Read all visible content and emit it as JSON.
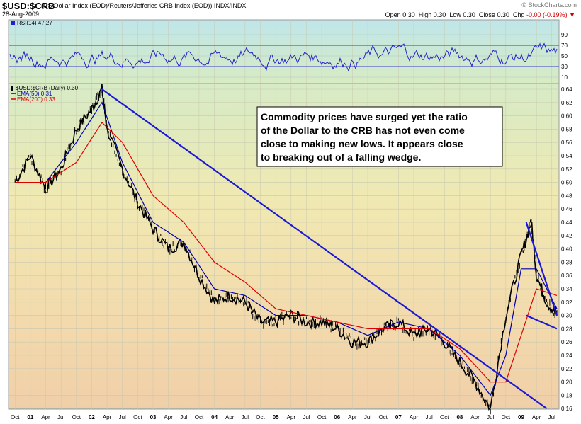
{
  "header": {
    "symbol": "$USD:$CRB",
    "subtitle": "(US Dollar Index (EOD)/Reuters/Jefferies CRB Index (EOD)) INDX/INDX",
    "date": "28-Aug-2009",
    "open_label": "Open",
    "open": "0.30",
    "high_label": "High",
    "high": "0.30",
    "low_label": "Low",
    "low": "0.30",
    "close_label": "Close",
    "close": "0.30",
    "chg_label": "Chg",
    "chg": "-0.00 (-0.19%)",
    "brand": "© StockCharts.com"
  },
  "rsi_panel": {
    "legend": "RSI(14) 47.27",
    "ticks": [
      90,
      70,
      50,
      30,
      10
    ],
    "levels": [
      70,
      30
    ]
  },
  "price_panel": {
    "legend_main": "$USD:$CRB (Daily) 0.30",
    "legend_ema50": "EMA(50) 0.31",
    "legend_ema200": "EMA(200) 0.33",
    "annotation": [
      "Commodity prices have surged yet the ratio",
      "of the Dollar to the CRB has not even come",
      "close to making new lows.  It appears close",
      "to breaking out of a falling wedge."
    ],
    "yticks": [
      "0.64",
      "0.62",
      "0.60",
      "0.58",
      "0.56",
      "0.54",
      "0.52",
      "0.50",
      "0.48",
      "0.46",
      "0.44",
      "0.42",
      "0.40",
      "0.38",
      "0.36",
      "0.34",
      "0.32",
      "0.30",
      "0.28",
      "0.26",
      "0.24",
      "0.22",
      "0.20",
      "0.18",
      "0.16"
    ]
  },
  "xaxis": {
    "labels": [
      "Oct",
      "01",
      "Apr",
      "Jul",
      "Oct",
      "02",
      "Apr",
      "Jul",
      "Oct",
      "03",
      "Apr",
      "Jul",
      "Oct",
      "04",
      "Apr",
      "Jul",
      "Oct",
      "05",
      "Apr",
      "Jul",
      "Oct",
      "06",
      "Apr",
      "Jul",
      "Oct",
      "07",
      "Apr",
      "Jul",
      "Oct",
      "08",
      "Apr",
      "Jul",
      "Oct",
      "09",
      "Apr",
      "Jul"
    ],
    "bold": [
      "01",
      "02",
      "03",
      "04",
      "05",
      "06",
      "07",
      "08",
      "09"
    ]
  },
  "colors": {
    "price": "#000000",
    "ema50": "#0000aa",
    "ema200": "#dd0000",
    "trendline": "#1a1ad6",
    "rsi": "#2222cc"
  },
  "chart_data": {
    "type": "line",
    "title": "$USD:$CRB",
    "x_range": [
      "2000-10",
      "2009-08"
    ],
    "ylim": [
      0.15,
      0.65
    ],
    "series": [
      {
        "name": "$USD:$CRB",
        "x": [
          "2000-10",
          "2001-01",
          "2001-04",
          "2001-07",
          "2001-10",
          "2002-01",
          "2002-03",
          "2002-04",
          "2002-07",
          "2002-10",
          "2003-01",
          "2003-04",
          "2003-07",
          "2003-10",
          "2004-01",
          "2004-04",
          "2004-07",
          "2004-10",
          "2005-01",
          "2005-04",
          "2005-07",
          "2005-10",
          "2006-01",
          "2006-04",
          "2006-07",
          "2006-10",
          "2007-01",
          "2007-04",
          "2007-07",
          "2007-10",
          "2008-01",
          "2008-04",
          "2008-07",
          "2008-10",
          "2009-01",
          "2009-03",
          "2009-04",
          "2009-06",
          "2009-08"
        ],
        "values": [
          0.5,
          0.54,
          0.49,
          0.52,
          0.58,
          0.61,
          0.64,
          0.58,
          0.52,
          0.47,
          0.43,
          0.4,
          0.41,
          0.36,
          0.32,
          0.33,
          0.32,
          0.29,
          0.29,
          0.3,
          0.29,
          0.29,
          0.28,
          0.26,
          0.26,
          0.28,
          0.29,
          0.27,
          0.28,
          0.26,
          0.23,
          0.2,
          0.16,
          0.3,
          0.39,
          0.44,
          0.36,
          0.32,
          0.3
        ]
      },
      {
        "name": "EMA(50)",
        "x": [
          "2000-10",
          "2001-04",
          "2001-10",
          "2002-03",
          "2002-07",
          "2003-01",
          "2003-07",
          "2004-01",
          "2004-07",
          "2005-01",
          "2005-07",
          "2006-01",
          "2006-07",
          "2007-01",
          "2007-07",
          "2008-01",
          "2008-07",
          "2008-10",
          "2009-01",
          "2009-04",
          "2009-08"
        ],
        "values": [
          0.5,
          0.5,
          0.56,
          0.62,
          0.53,
          0.44,
          0.41,
          0.34,
          0.33,
          0.3,
          0.3,
          0.29,
          0.27,
          0.29,
          0.28,
          0.24,
          0.18,
          0.24,
          0.37,
          0.37,
          0.31
        ]
      },
      {
        "name": "EMA(200)",
        "x": [
          "2000-10",
          "2001-04",
          "2001-10",
          "2002-03",
          "2002-07",
          "2003-01",
          "2003-07",
          "2004-01",
          "2004-07",
          "2005-01",
          "2005-07",
          "2006-01",
          "2006-07",
          "2007-01",
          "2007-07",
          "2008-01",
          "2008-07",
          "2008-10",
          "2009-01",
          "2009-04",
          "2009-08"
        ],
        "values": [
          0.5,
          0.5,
          0.53,
          0.59,
          0.56,
          0.48,
          0.44,
          0.38,
          0.35,
          0.31,
          0.3,
          0.29,
          0.28,
          0.28,
          0.28,
          0.25,
          0.2,
          0.2,
          0.27,
          0.34,
          0.33
        ]
      }
    ],
    "trendlines": [
      {
        "name": "long-term resistance",
        "points": [
          [
            "2002-03",
            0.64
          ],
          [
            "2009-06",
            0.16
          ]
        ]
      },
      {
        "name": "wedge upper",
        "points": [
          [
            "2009-02",
            0.44
          ],
          [
            "2009-08",
            0.3
          ]
        ]
      },
      {
        "name": "wedge lower",
        "points": [
          [
            "2009-02",
            0.3
          ],
          [
            "2009-08",
            0.28
          ]
        ]
      }
    ]
  }
}
